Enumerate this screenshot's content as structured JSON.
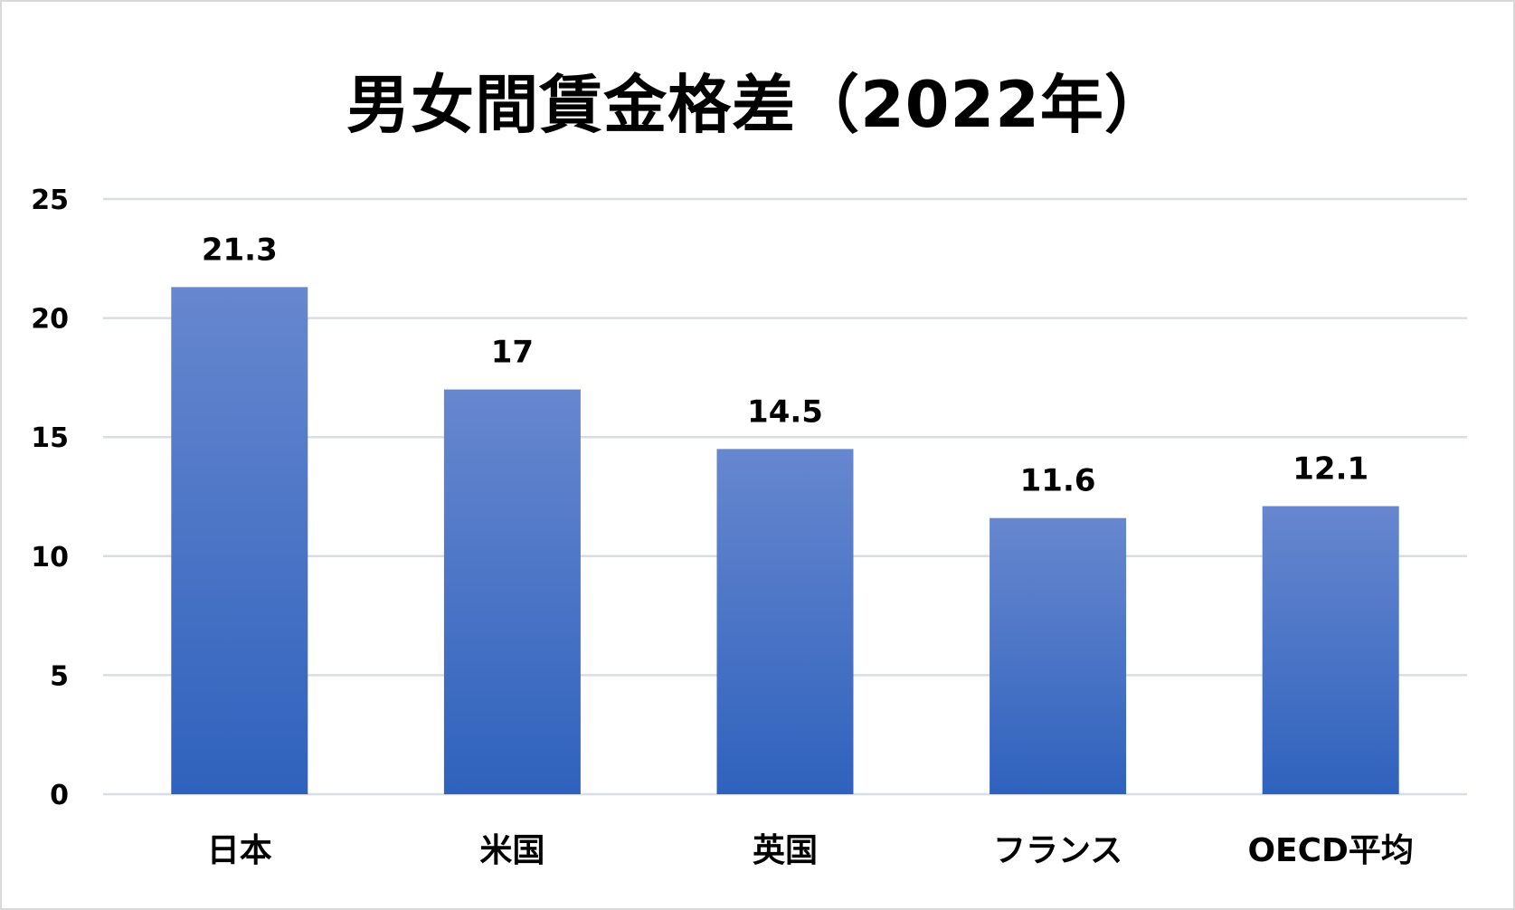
{
  "chart_data": {
    "type": "bar",
    "title": "男女間賃金格差（2022年）",
    "categories": [
      "日本",
      "米国",
      "英国",
      "フランス",
      "OECD平均"
    ],
    "values": [
      21.3,
      17,
      14.5,
      11.6,
      12.1
    ],
    "data_labels": [
      "21.3",
      "17",
      "14.5",
      "11.6",
      "12.1"
    ],
    "ylim": [
      0,
      25
    ],
    "yticks": [
      0,
      5,
      10,
      15,
      20,
      25
    ],
    "grid": true,
    "legend": "none",
    "colors": {
      "bar_top": "#6787cf",
      "bar_bottom": "#2f62bd",
      "grid": "#d9dee6",
      "text": "#000000"
    }
  }
}
